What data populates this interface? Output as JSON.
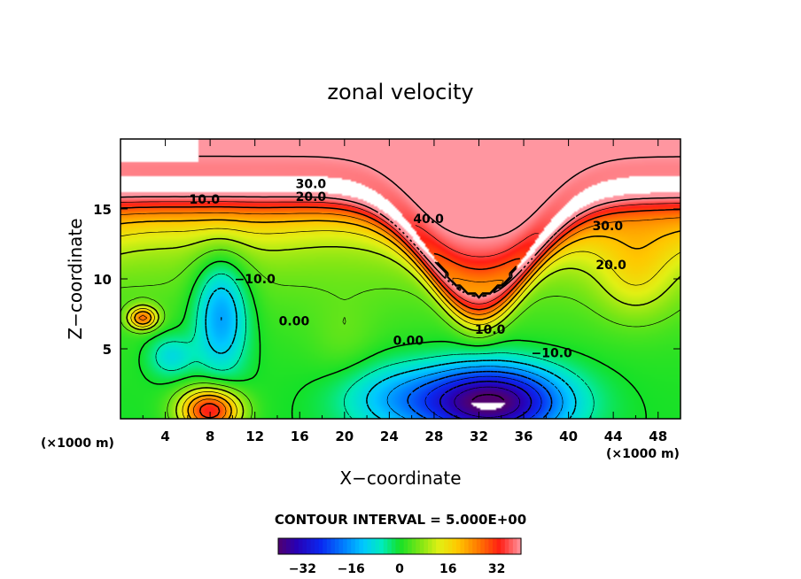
{
  "chart_data": {
    "type": "heatmap",
    "title": "zonal velocity",
    "xlabel": "X−coordinate",
    "ylabel": "Z−coordinate",
    "x_unit_label": "(×1000 m)",
    "y_unit_label": "(×1000 m)",
    "xlim": [
      0,
      50
    ],
    "ylim": [
      0,
      20
    ],
    "x_ticks": [
      "4",
      "8",
      "12",
      "16",
      "20",
      "24",
      "28",
      "32",
      "36",
      "40",
      "44",
      "48"
    ],
    "y_ticks": [
      "5",
      "10",
      "15"
    ],
    "contour_interval_text": "CONTOUR INTERVAL = 5.000E+00",
    "contour_labels": [
      {
        "text": "30.0",
        "x": 17.0,
        "y": 16.8
      },
      {
        "text": "20.0",
        "x": 17.0,
        "y": 15.9
      },
      {
        "text": "10.0",
        "x": 7.5,
        "y": 15.7
      },
      {
        "text": "40.0",
        "x": 27.5,
        "y": 14.3
      },
      {
        "text": "30.0",
        "x": 43.5,
        "y": 13.8
      },
      {
        "text": "20.0",
        "x": 43.8,
        "y": 11.0
      },
      {
        "text": "−10.0",
        "x": 12.0,
        "y": 10.0
      },
      {
        "text": "0.00",
        "x": 15.5,
        "y": 7.0
      },
      {
        "text": "10.0",
        "x": 33.0,
        "y": 6.4
      },
      {
        "text": "0.00",
        "x": 25.7,
        "y": 5.6
      },
      {
        "text": "−10.0",
        "x": 38.5,
        "y": 4.7
      }
    ],
    "colorbar": {
      "min": -40,
      "max": 40,
      "ticks": [
        "−32",
        "−16",
        "0",
        "16",
        "32"
      ],
      "tick_values": [
        -32,
        -16,
        0,
        16,
        32
      ]
    },
    "features": [
      {
        "x": 31,
        "z": 17.5,
        "u": 40
      },
      {
        "x": 8,
        "z": 1.2,
        "u": 35
      },
      {
        "x": 4,
        "z": 4.5,
        "u": -15
      },
      {
        "x": 9,
        "z": 7,
        "u": -14
      },
      {
        "x": 33,
        "z": 1.5,
        "u": -35
      },
      {
        "x": 2,
        "z": 7.2,
        "u": 25
      },
      {
        "x": 46,
        "z": 10,
        "u": 20
      }
    ]
  }
}
